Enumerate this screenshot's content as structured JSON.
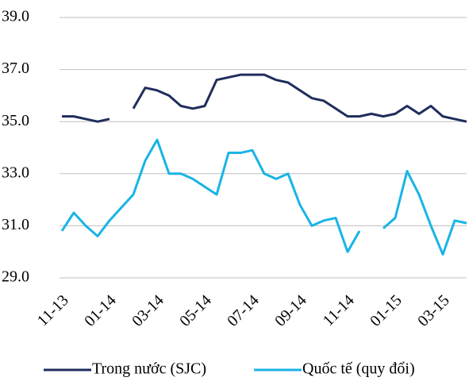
{
  "chart_data": {
    "type": "line",
    "categories": [
      "11-13",
      null,
      null,
      null,
      "01-14",
      null,
      null,
      null,
      "03-14",
      null,
      null,
      null,
      "05-14",
      null,
      null,
      null,
      "07-14",
      null,
      null,
      null,
      "09-14",
      null,
      null,
      null,
      "11-14",
      null,
      null,
      null,
      "01-15",
      null,
      null,
      null,
      "03-15",
      null,
      null
    ],
    "series": [
      {
        "name": "Trong nước (SJC)",
        "color": "#1f2d5c",
        "values": [
          35.2,
          35.2,
          35.1,
          35.0,
          35.1,
          null,
          35.5,
          36.3,
          36.2,
          36.0,
          35.6,
          35.5,
          35.6,
          36.6,
          36.7,
          36.8,
          36.8,
          36.8,
          36.6,
          36.5,
          36.2,
          35.9,
          35.8,
          35.5,
          35.2,
          35.2,
          35.3,
          35.2,
          35.3,
          35.6,
          35.3,
          35.6,
          35.2,
          35.1,
          35.0
        ]
      },
      {
        "name": "Quốc tế (quy đổi)",
        "color": "#19b4e6",
        "values": [
          30.8,
          31.5,
          31.0,
          30.6,
          31.2,
          31.7,
          32.2,
          33.5,
          34.3,
          33.0,
          33.0,
          32.8,
          32.5,
          32.2,
          33.8,
          33.8,
          33.9,
          33.0,
          32.8,
          33.0,
          31.8,
          31.0,
          31.2,
          31.3,
          30.0,
          30.8,
          null,
          30.9,
          31.3,
          33.1,
          32.2,
          31.0,
          29.9,
          31.2,
          31.1
        ]
      }
    ],
    "ylim": [
      29,
      39
    ],
    "yticks": [
      {
        "value": 29,
        "label": "29.0"
      },
      {
        "value": 31,
        "label": "31.0"
      },
      {
        "value": 33,
        "label": "33.0"
      },
      {
        "value": 35,
        "label": "35.0"
      },
      {
        "value": 37,
        "label": "37.0"
      },
      {
        "value": 39,
        "label": "39.0"
      }
    ],
    "grid": true,
    "legend": "bottom"
  }
}
